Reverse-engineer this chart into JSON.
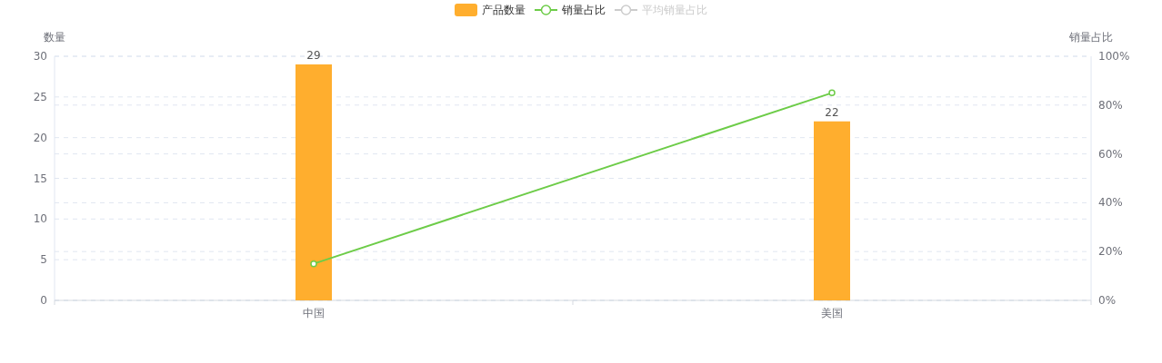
{
  "chart_data": {
    "type": "bar",
    "ylabel": "数量",
    "y2label": "销量占比",
    "categories": [
      "中国",
      "美国"
    ],
    "series": [
      {
        "name": "产品数量",
        "color": "#ffae2e",
        "values": [
          29,
          22
        ],
        "value_labels": [
          "29",
          "22"
        ]
      },
      {
        "name": "销量占比",
        "type": "line",
        "axis": "y2",
        "color": "#6dcc48",
        "marker": "circle",
        "values": [
          15,
          85
        ]
      },
      {
        "name": "平均销量占比",
        "type": "line",
        "color": "#cccccc",
        "values": [
          null,
          null
        ]
      }
    ],
    "ylim": [
      0,
      30
    ],
    "yticks": [
      0,
      5,
      10,
      15,
      20,
      25,
      30
    ],
    "y2lim": [
      0,
      100
    ],
    "y2ticks": [
      {
        "value": 0,
        "label": "0%"
      },
      {
        "value": 20,
        "label": "20%"
      },
      {
        "value": 40,
        "label": "40%"
      },
      {
        "value": 60,
        "label": "60%"
      },
      {
        "value": 80,
        "label": "80%"
      },
      {
        "value": 100,
        "label": "100%"
      }
    ],
    "grid": true,
    "legend": "top"
  }
}
